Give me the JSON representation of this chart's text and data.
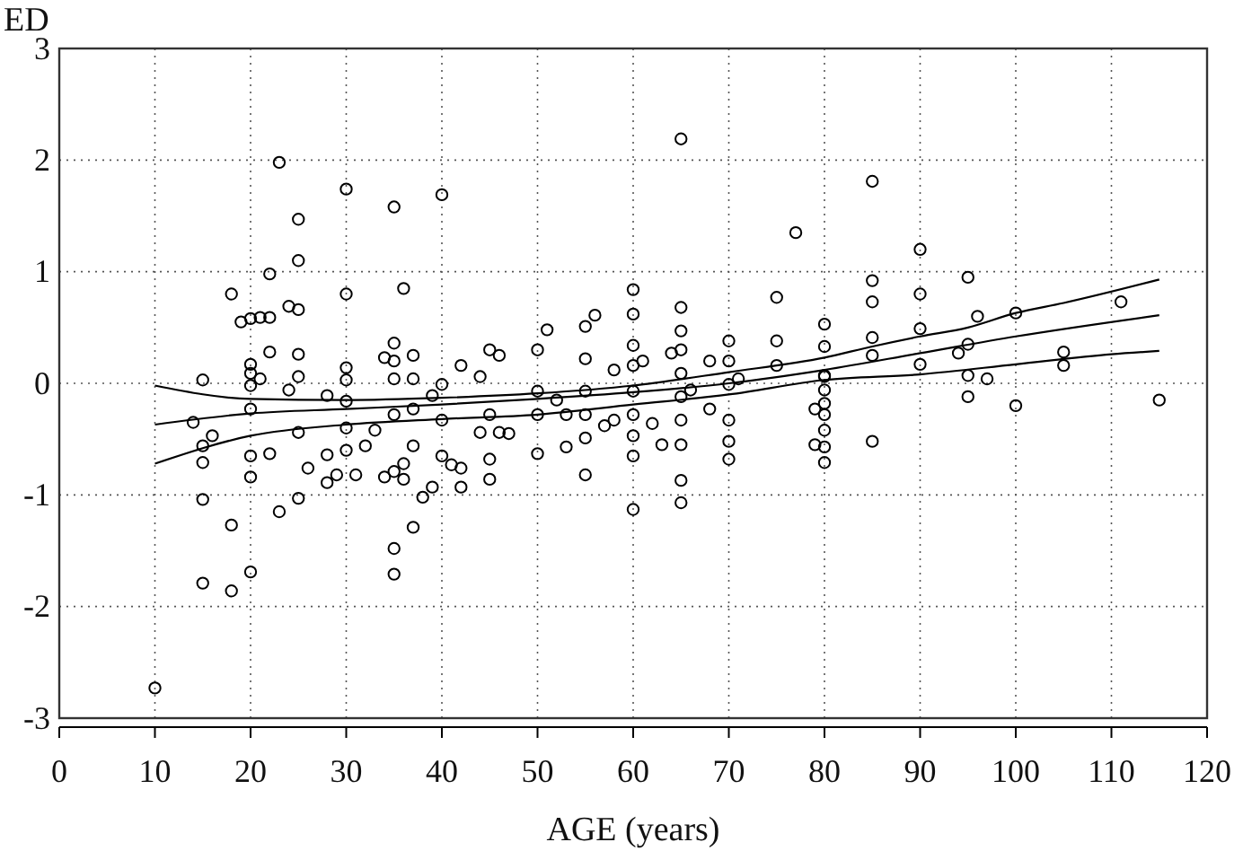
{
  "chart_data": {
    "type": "scatter",
    "xlabel": "AGE (years)",
    "ylabel": "ED",
    "xlim": [
      0,
      120
    ],
    "ylim": [
      -3,
      3
    ],
    "xticks": [
      0,
      10,
      20,
      30,
      40,
      50,
      60,
      70,
      80,
      90,
      100,
      110,
      120
    ],
    "yticks": [
      -3,
      -2,
      -1,
      0,
      1,
      2,
      3
    ],
    "grid": true,
    "line_style": "solid",
    "series": [
      {
        "marker": "circle",
        "color": "#000000",
        "x": [
          10,
          14,
          15,
          15,
          15,
          15,
          15,
          16,
          18,
          18,
          18,
          19,
          20,
          20,
          20,
          20,
          20,
          20,
          20,
          20,
          21,
          21,
          22,
          22,
          22,
          22,
          23,
          23,
          24,
          24,
          25,
          25,
          25,
          25,
          25,
          25,
          25,
          26,
          28,
          28,
          28,
          29,
          30,
          30,
          30,
          30,
          30,
          30,
          30,
          31,
          32,
          33,
          34,
          34,
          35,
          35,
          35,
          35,
          35,
          35,
          35,
          35,
          36,
          36,
          36,
          37,
          37,
          37,
          37,
          37,
          38,
          39,
          39,
          40,
          40,
          40,
          40,
          41,
          42,
          42,
          42,
          44,
          44,
          45,
          45,
          45,
          45,
          46,
          46,
          47,
          50,
          50,
          50,
          50,
          51,
          52,
          53,
          53,
          55,
          56,
          55,
          55,
          55,
          55,
          55,
          57,
          58,
          58,
          60,
          60,
          60,
          60,
          60,
          60,
          60,
          60,
          60,
          61,
          62,
          63,
          65,
          65,
          65,
          65,
          65,
          65,
          65,
          65,
          65,
          65,
          64,
          66,
          68,
          68,
          70,
          70,
          70,
          70,
          70,
          70,
          71,
          75,
          75,
          75,
          77,
          80,
          80,
          80,
          80,
          80,
          80,
          79,
          79,
          80,
          80,
          80,
          80,
          85,
          85,
          85,
          85,
          85,
          85,
          90,
          90,
          90,
          90,
          94,
          95,
          95,
          95,
          95,
          96,
          97,
          100,
          100,
          105,
          105,
          111,
          115
        ],
        "values": [
          -2.73,
          -0.35,
          0.03,
          -0.56,
          -0.71,
          -1.04,
          -1.79,
          -0.47,
          0.8,
          -1.27,
          -1.86,
          0.55,
          0.58,
          0.17,
          0.09,
          -0.02,
          -0.23,
          -0.65,
          -0.84,
          -1.69,
          0.59,
          0.04,
          0.98,
          0.59,
          0.28,
          -0.63,
          1.98,
          -1.15,
          0.69,
          -0.06,
          1.47,
          1.1,
          0.66,
          0.26,
          0.06,
          -0.44,
          -1.03,
          -0.76,
          -0.11,
          -0.64,
          -0.89,
          -0.82,
          1.74,
          0.8,
          0.14,
          0.03,
          -0.16,
          -0.4,
          -0.6,
          -0.82,
          -0.56,
          -0.42,
          0.23,
          -0.84,
          1.58,
          0.36,
          0.2,
          0.04,
          -0.28,
          -0.79,
          -1.48,
          -1.71,
          0.85,
          -0.72,
          -0.86,
          0.25,
          0.04,
          -0.23,
          -0.56,
          -1.29,
          -1.02,
          -0.93,
          -0.11,
          1.69,
          -0.01,
          -0.33,
          -0.65,
          -0.73,
          -0.76,
          0.16,
          -0.93,
          0.06,
          -0.44,
          0.3,
          -0.28,
          -0.68,
          -0.86,
          0.25,
          -0.44,
          -0.45,
          0.3,
          -0.07,
          -0.28,
          -0.63,
          0.48,
          -0.15,
          -0.28,
          -0.57,
          0.51,
          0.61,
          0.22,
          -0.07,
          -0.28,
          -0.49,
          -0.82,
          -0.38,
          0.12,
          -0.33,
          0.84,
          0.62,
          0.34,
          0.16,
          -0.07,
          -0.28,
          -0.47,
          -0.65,
          -1.13,
          0.2,
          -0.36,
          -0.55,
          2.19,
          0.68,
          0.47,
          0.3,
          0.09,
          -0.12,
          -0.33,
          -0.55,
          -0.87,
          -1.07,
          0.27,
          -0.06,
          -0.23,
          0.2,
          0.38,
          0.2,
          -0.01,
          -0.33,
          -0.52,
          -0.68,
          0.04,
          0.77,
          0.38,
          0.16,
          1.35,
          0.53,
          0.33,
          0.06,
          -0.18,
          -0.42,
          -0.71,
          -0.23,
          -0.55,
          0.07,
          -0.06,
          -0.28,
          -0.57,
          1.81,
          0.92,
          0.73,
          0.41,
          0.25,
          -0.52,
          1.2,
          0.8,
          0.49,
          0.17,
          0.27,
          0.95,
          0.35,
          0.07,
          -0.12,
          0.6,
          0.04,
          0.63,
          -0.2,
          0.28,
          0.16,
          0.73,
          -0.15
        ]
      },
      {
        "type": "line",
        "color": "#000000",
        "x": [
          10,
          20,
          30,
          40,
          50,
          60,
          70,
          80,
          85,
          90,
          95,
          100,
          105,
          115
        ],
        "values": [
          -0.02,
          -0.14,
          -0.15,
          -0.13,
          -0.09,
          -0.02,
          0.1,
          0.23,
          0.33,
          0.42,
          0.5,
          0.63,
          0.72,
          0.93
        ]
      },
      {
        "type": "line",
        "color": "#000000",
        "x": [
          10,
          20,
          30,
          40,
          50,
          60,
          70,
          80,
          90,
          100,
          115
        ],
        "values": [
          -0.37,
          -0.27,
          -0.23,
          -0.19,
          -0.14,
          -0.08,
          0.0,
          0.12,
          0.27,
          0.42,
          0.61
        ]
      },
      {
        "type": "line",
        "color": "#000000",
        "x": [
          10,
          20,
          30,
          40,
          50,
          60,
          70,
          80,
          90,
          100,
          110,
          115
        ],
        "values": [
          -0.72,
          -0.47,
          -0.37,
          -0.32,
          -0.28,
          -0.19,
          -0.1,
          0.03,
          0.08,
          0.17,
          0.26,
          0.29
        ]
      }
    ]
  }
}
